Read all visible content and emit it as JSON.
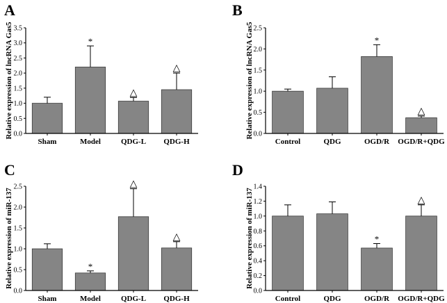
{
  "colors": {
    "bar": "#858585",
    "bar_edge": "#3a3a3a",
    "axis": "#000000"
  },
  "chart_data": [
    {
      "type": "bar",
      "panel": "A",
      "ylabel": "Relative expression of lncRNA Gas5",
      "categories": [
        "Sham",
        "Model",
        "QDG-L",
        "QDG-H"
      ],
      "values": [
        1.0,
        2.2,
        1.07,
        1.45
      ],
      "errors": [
        0.2,
        0.7,
        0.12,
        0.55
      ],
      "marks": [
        "",
        "*",
        "△",
        "△"
      ],
      "ylim": [
        0,
        3.5
      ],
      "yticks": [
        "0.0",
        "0.5",
        "1.0",
        "1.5",
        "2.0",
        "2.5",
        "3.0",
        "3.5"
      ],
      "tick_step": 0.5
    },
    {
      "type": "bar",
      "panel": "B",
      "ylabel": "Relative expression of lncRNA Gas5",
      "categories": [
        "Control",
        "QDG",
        "OGD/R",
        "OGD/R+QDG"
      ],
      "values": [
        1.0,
        1.07,
        1.82,
        0.37
      ],
      "errors": [
        0.05,
        0.27,
        0.28,
        0.04
      ],
      "marks": [
        "",
        "",
        "*",
        "△"
      ],
      "ylim": [
        0,
        2.5
      ],
      "yticks": [
        "0.0",
        "0.5",
        "1.0",
        "1.5",
        "2.0",
        "2.5"
      ],
      "tick_step": 0.5
    },
    {
      "type": "bar",
      "panel": "C",
      "ylabel": "Relative expression of miR-137",
      "categories": [
        "Sham",
        "Model",
        "QDG-L",
        "QDG-H"
      ],
      "values": [
        1.0,
        0.42,
        1.77,
        1.02
      ],
      "errors": [
        0.12,
        0.05,
        0.67,
        0.15
      ],
      "marks": [
        "",
        "*",
        "△",
        "△"
      ],
      "ylim": [
        0,
        2.5
      ],
      "yticks": [
        "0.0",
        "0.5",
        "1.0",
        "1.5",
        "2.0",
        "2.5"
      ],
      "tick_step": 0.5
    },
    {
      "type": "bar",
      "panel": "D",
      "ylabel": "Relative expression of miR-137",
      "categories": [
        "Control",
        "QDG",
        "OGD/R",
        "OGD/R+QDG"
      ],
      "values": [
        1.0,
        1.03,
        0.57,
        1.0
      ],
      "errors": [
        0.15,
        0.16,
        0.06,
        0.15
      ],
      "marks": [
        "",
        "",
        "*",
        "△"
      ],
      "ylim": [
        0,
        1.4
      ],
      "yticks": [
        "0.0",
        "0.2",
        "0.4",
        "0.6",
        "0.8",
        "1.0",
        "1.2",
        "1.4"
      ],
      "tick_step": 0.2
    }
  ]
}
